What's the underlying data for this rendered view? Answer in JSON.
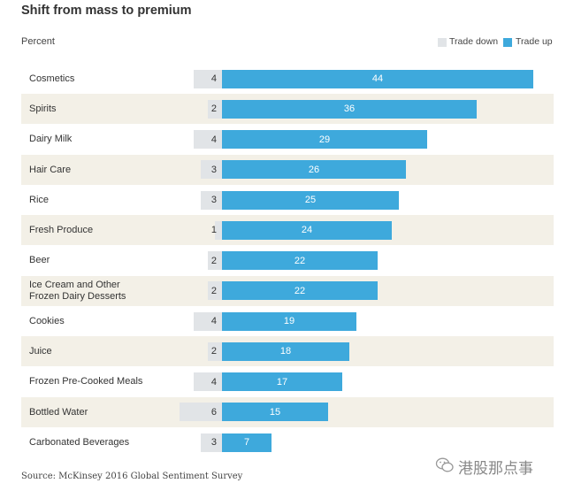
{
  "chart_data": {
    "type": "bar",
    "title": "Shift from mass to premium",
    "ylabel": "Percent",
    "categories": [
      "Cosmetics",
      "Spirits",
      "Dairy Milk",
      "Hair Care",
      "Rice",
      "Fresh Produce",
      "Beer",
      "Ice Cream and Other\nFrozen Dairy Desserts",
      "Cookies",
      "Juice",
      "Frozen Pre-Cooked Meals",
      "Bottled Water",
      "Carbonated Beverages"
    ],
    "series": [
      {
        "name": "Trade down",
        "color": "#e1e4e7",
        "values": [
          4,
          2,
          4,
          3,
          3,
          1,
          2,
          2,
          4,
          2,
          4,
          6,
          3
        ]
      },
      {
        "name": "Trade up",
        "color": "#3ea9dc",
        "values": [
          44,
          36,
          29,
          26,
          25,
          24,
          22,
          22,
          19,
          18,
          17,
          15,
          7
        ]
      }
    ],
    "legend": "top-right"
  },
  "source": "Source: McKinsey 2016 Global Sentiment Survey",
  "watermark": "港股那点事",
  "colors": {
    "row_shade": "#f3f0e7"
  }
}
